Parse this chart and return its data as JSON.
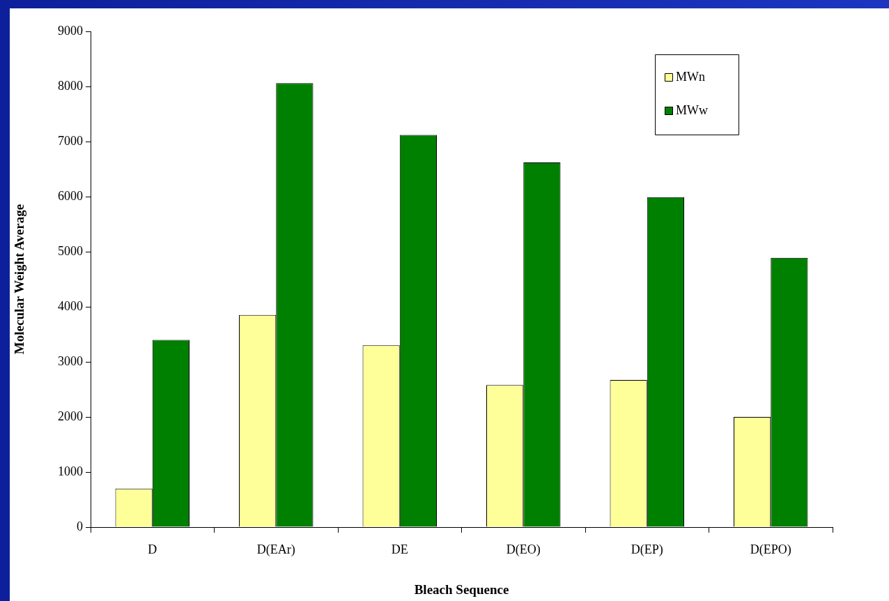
{
  "chart_data": {
    "type": "bar",
    "xlabel": "Bleach Sequence",
    "ylabel": "Molecular Weight Average",
    "categories": [
      "D",
      "D(EAr)",
      "DE",
      "D(EO)",
      "D(EP)",
      "D(EPO)"
    ],
    "series": [
      {
        "name": "MWn",
        "color": "#ffff99",
        "values": [
          700,
          3850,
          3300,
          2580,
          2670,
          2000
        ]
      },
      {
        "name": "MWw",
        "color": "#008000",
        "values": [
          3400,
          8060,
          7120,
          6620,
          5990,
          4890
        ]
      }
    ],
    "ylim": [
      0,
      9000
    ],
    "yticks": [
      0,
      1000,
      2000,
      3000,
      4000,
      5000,
      6000,
      7000,
      8000,
      9000
    ],
    "grid": false,
    "legend": "top right"
  }
}
